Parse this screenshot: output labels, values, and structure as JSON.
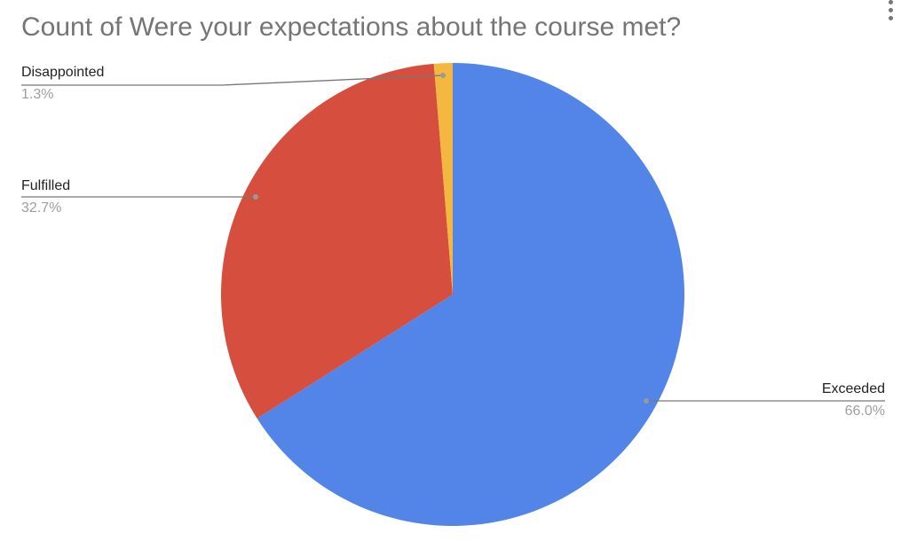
{
  "chart_data": {
    "type": "pie",
    "title": "Count of Were your expectations about the course met?",
    "categories": [
      "Exceeded",
      "Fulfilled",
      "Disappointed"
    ],
    "values": [
      66.0,
      32.7,
      1.3
    ],
    "data_labels": [
      "66.0%",
      "32.7%",
      "1.3%"
    ],
    "colors": [
      "#5385e8",
      "#d64e3e",
      "#f4b73f"
    ],
    "start_angle_deg": 0,
    "direction": "clockwise",
    "legend": "none (leader-line labels)"
  }
}
